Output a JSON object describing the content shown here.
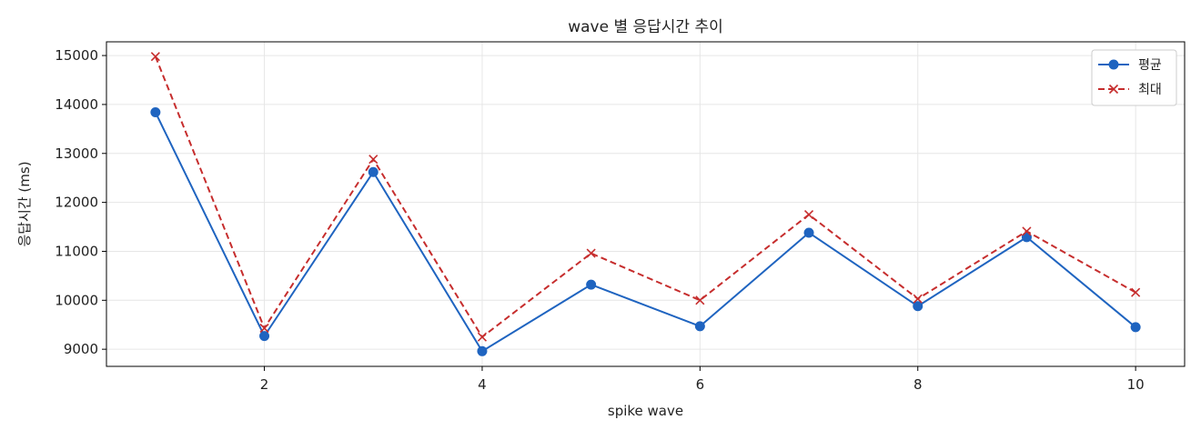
{
  "chart_data": {
    "type": "line",
    "title": "wave 별 응답시간 추이",
    "xlabel": "spike wave",
    "ylabel": "응답시간 (ms)",
    "x": [
      1,
      2,
      3,
      4,
      5,
      6,
      7,
      8,
      9,
      10
    ],
    "xlim": [
      0.55,
      10.45
    ],
    "ylim": [
      8650,
      15280
    ],
    "xticks": [
      2,
      4,
      6,
      8,
      10
    ],
    "yticks": [
      9000,
      10000,
      11000,
      12000,
      13000,
      14000,
      15000
    ],
    "grid": true,
    "legend_position": "top-right",
    "series": [
      {
        "name": "평균",
        "values": [
          13840,
          9270,
          12620,
          8960,
          10320,
          9470,
          11380,
          9880,
          11290,
          9450
        ],
        "color": "#1f64c0",
        "line_style": "solid",
        "marker": "circle"
      },
      {
        "name": "최대",
        "values": [
          14980,
          9430,
          12880,
          9250,
          10960,
          10000,
          11750,
          10030,
          11410,
          10160
        ],
        "color": "#c62d2d",
        "line_style": "dashed",
        "marker": "x"
      }
    ]
  }
}
